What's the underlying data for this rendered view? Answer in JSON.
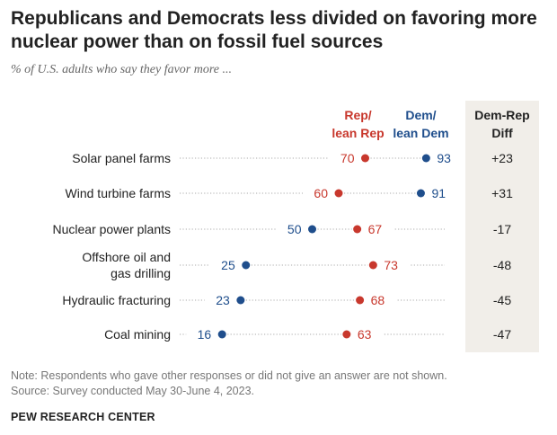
{
  "header": {
    "title": "Republicans and Democrats less divided on favoring more nuclear power than on fossil fuel sources",
    "subtitle": "% of U.S. adults who say they favor more ..."
  },
  "chart_data": {
    "type": "dot",
    "xlim": [
      0,
      100
    ],
    "grid": false,
    "colors": {
      "rep": "#c8382d",
      "dem": "#1f4e8c",
      "diff_panel": "#f1eee9"
    },
    "legend": {
      "rep": [
        "Rep/",
        "lean Rep"
      ],
      "dem": [
        "Dem/",
        "lean Dem"
      ],
      "diff": [
        "Dem-Rep",
        "Diff"
      ]
    },
    "rows": [
      {
        "label": [
          "Solar panel farms"
        ],
        "rep": 70,
        "dem": 93,
        "diff": "+23"
      },
      {
        "label": [
          "Wind turbine farms"
        ],
        "rep": 60,
        "dem": 91,
        "diff": "+31"
      },
      {
        "label": [
          "Nuclear power plants"
        ],
        "rep": 67,
        "dem": 50,
        "diff": "-17"
      },
      {
        "label": [
          "Offshore oil and",
          "gas drilling"
        ],
        "rep": 73,
        "dem": 25,
        "diff": "-48"
      },
      {
        "label": [
          "Hydraulic fracturing"
        ],
        "rep": 68,
        "dem": 23,
        "diff": "-45"
      },
      {
        "label": [
          "Coal mining"
        ],
        "rep": 63,
        "dem": 16,
        "diff": "-47"
      }
    ]
  },
  "footer": {
    "note": "Note: Respondents who gave other responses or did not give an answer are not shown.",
    "source": "Source: Survey conducted May 30-June 4, 2023.",
    "org": "PEW RESEARCH CENTER"
  }
}
